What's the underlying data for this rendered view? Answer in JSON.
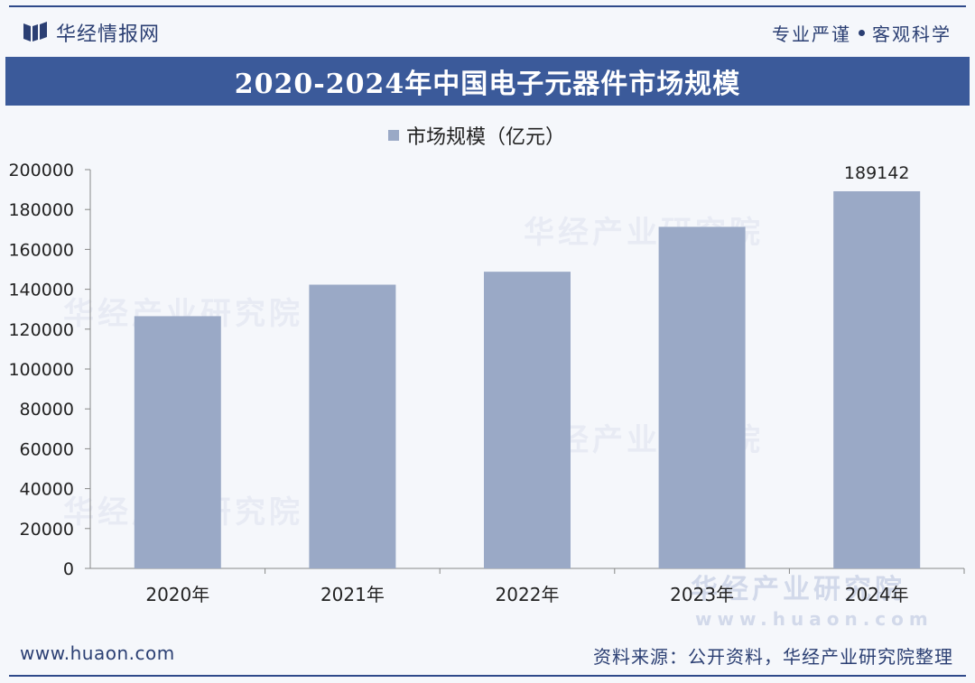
{
  "header": {
    "logo_text": "华经情报网",
    "slogan_left": "专业严谨",
    "slogan_right": "客观科学"
  },
  "title": "2020-2024年中国电子元器件市场规模",
  "legend": {
    "label": "市场规模（亿元）",
    "color": "#9aa9c6"
  },
  "chart_data": {
    "type": "bar",
    "categories": [
      "2020年",
      "2021年",
      "2022年",
      "2023年",
      "2024年"
    ],
    "series": [
      {
        "name": "市场规模（亿元）",
        "values": [
          126500,
          142300,
          148800,
          171300,
          189142
        ]
      }
    ],
    "data_labels": [
      "",
      "",
      "",
      "",
      "189142"
    ],
    "ylim": [
      0,
      200000
    ],
    "yticks": [
      "0",
      "20000",
      "40000",
      "60000",
      "80000",
      "100000",
      "120000",
      "140000",
      "160000",
      "180000",
      "200000"
    ],
    "grid": false,
    "legend_position": "top-center"
  },
  "watermark": {
    "main": "华经产业研究院",
    "url": "www.huaon.com"
  },
  "footer": {
    "website": "www.huaon.com",
    "source": "资料来源：公开资料，华经产业研究院整理"
  }
}
